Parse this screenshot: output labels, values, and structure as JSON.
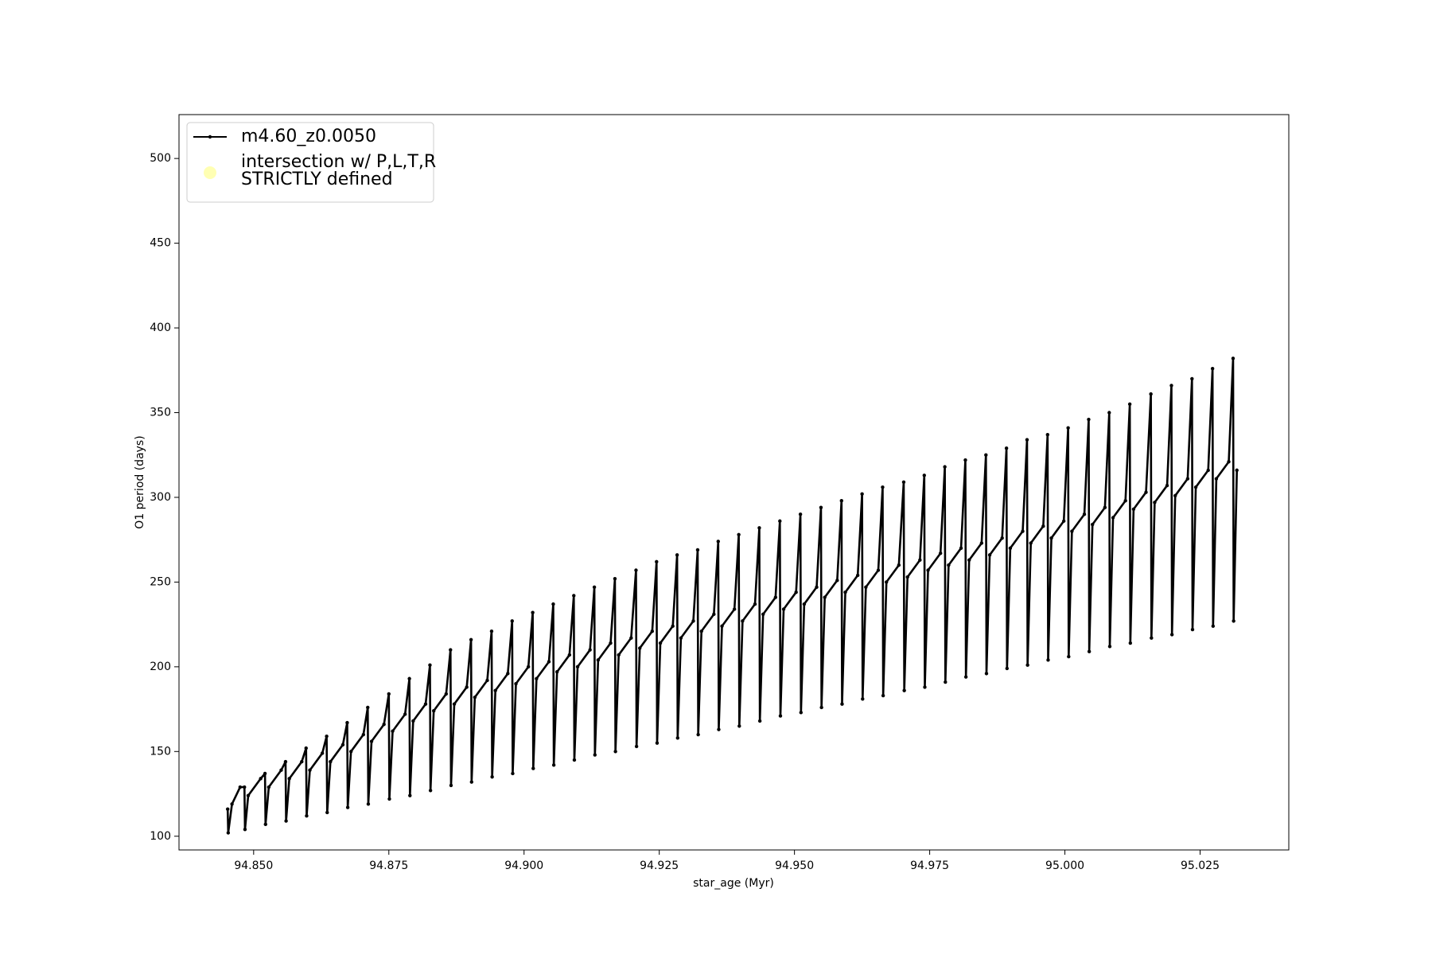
{
  "chart_data": {
    "type": "line",
    "xlabel": "star_age (Myr)",
    "ylabel": "O1 period (days)",
    "xlim": [
      94.8362,
      95.0414
    ],
    "ylim": [
      91.9,
      525.9
    ],
    "xticks": [
      {
        "value": 94.85,
        "label": "94.850"
      },
      {
        "value": 94.875,
        "label": "94.875"
      },
      {
        "value": 94.9,
        "label": "94.900"
      },
      {
        "value": 94.925,
        "label": "94.925"
      },
      {
        "value": 94.95,
        "label": "94.950"
      },
      {
        "value": 94.975,
        "label": "94.975"
      },
      {
        "value": 95.0,
        "label": "95.000"
      },
      {
        "value": 95.025,
        "label": "95.025"
      }
    ],
    "yticks": [
      100,
      150,
      200,
      250,
      300,
      350,
      400,
      450,
      500
    ],
    "grid": false,
    "legend": "upper left",
    "series": [
      {
        "name": "m4.60_z0.0050",
        "color": "#000000",
        "x": [
          94.8452,
          94.8453,
          94.846,
          94.8475,
          94.8483,
          94.8484,
          94.849,
          94.8513,
          94.8521,
          94.8522,
          94.8528,
          94.8551,
          94.8559,
          94.856,
          94.8566,
          94.8589,
          94.8597,
          94.8598,
          94.8604,
          94.8627,
          94.8635,
          94.8636,
          94.8642,
          94.8665,
          94.8673,
          94.8674,
          94.868,
          94.8703,
          94.8711,
          94.8712,
          94.8718,
          94.8741,
          94.875,
          94.8751,
          94.8757,
          94.878,
          94.8788,
          94.8789,
          94.8795,
          94.8818,
          94.8826,
          94.8827,
          94.8833,
          94.8856,
          94.8864,
          94.8865,
          94.8871,
          94.8894,
          94.8902,
          94.8903,
          94.8909,
          94.8932,
          94.894,
          94.8941,
          94.8947,
          94.897,
          94.8978,
          94.8979,
          94.8985,
          94.9008,
          94.9016,
          94.9017,
          94.9023,
          94.9046,
          94.9054,
          94.9055,
          94.9061,
          94.9084,
          94.9092,
          94.9093,
          94.9099,
          94.9122,
          94.913,
          94.9131,
          94.9137,
          94.916,
          94.9168,
          94.9169,
          94.9175,
          94.9198,
          94.9207,
          94.9208,
          94.9214,
          94.9237,
          94.9245,
          94.9246,
          94.9252,
          94.9275,
          94.9283,
          94.9284,
          94.929,
          94.9313,
          94.9321,
          94.9322,
          94.9328,
          94.9351,
          94.9359,
          94.936,
          94.9366,
          94.9389,
          94.9397,
          94.9398,
          94.9404,
          94.9427,
          94.9435,
          94.9436,
          94.9442,
          94.9465,
          94.9473,
          94.9474,
          94.948,
          94.9503,
          94.9511,
          94.9512,
          94.9518,
          94.9541,
          94.9549,
          94.955,
          94.9556,
          94.9579,
          94.9587,
          94.9588,
          94.9594,
          94.9617,
          94.9625,
          94.9626,
          94.9632,
          94.9655,
          94.9663,
          94.9664,
          94.967,
          94.9693,
          94.9702,
          94.9703,
          94.9709,
          94.9732,
          94.974,
          94.9741,
          94.9747,
          94.977,
          94.9778,
          94.9779,
          94.9785,
          94.9808,
          94.9816,
          94.9817,
          94.9823,
          94.9846,
          94.9854,
          94.9855,
          94.9861,
          94.9884,
          94.9892,
          94.9893,
          94.9899,
          94.9922,
          94.993,
          94.9931,
          94.9937,
          94.996,
          94.9968,
          94.9969,
          94.9975,
          94.9998,
          95.0006,
          95.0007,
          95.0013,
          95.0036,
          95.0044,
          95.0045,
          95.0051,
          95.0074,
          95.0082,
          95.0083,
          95.0089,
          95.0112,
          95.012,
          95.0121,
          95.0127,
          95.015,
          95.0159,
          95.016,
          95.0166,
          95.0189,
          95.0197,
          95.0198,
          95.0204,
          95.0227,
          95.0235,
          95.0236,
          95.0242,
          95.0265,
          95.0273,
          95.0274,
          95.028,
          95.0303,
          95.0311,
          95.0312,
          95.0318
        ],
        "values": [
          116,
          102,
          119,
          129,
          129,
          104,
          124,
          134,
          137,
          107,
          129,
          139,
          144,
          109,
          134,
          144,
          152,
          112,
          139,
          149,
          159,
          114,
          144,
          154,
          167,
          117,
          150,
          160,
          176,
          119,
          156,
          166,
          184,
          122,
          162,
          172,
          193,
          124,
          168,
          178,
          201,
          127,
          174,
          184,
          210,
          130,
          178,
          188,
          216,
          132,
          182,
          192,
          221,
          135,
          186,
          196,
          227,
          137,
          190,
          200,
          232,
          140,
          193,
          203,
          237,
          142,
          197,
          207,
          242,
          145,
          200,
          210,
          247,
          148,
          204,
          214,
          252,
          150,
          207,
          217,
          257,
          153,
          211,
          221,
          262,
          155,
          214,
          224,
          266,
          158,
          217,
          227,
          269,
          160,
          221,
          231,
          274,
          163,
          224,
          234,
          278,
          165,
          227,
          237,
          282,
          168,
          231,
          241,
          286,
          171,
          234,
          244,
          290,
          173,
          237,
          247,
          294,
          176,
          241,
          251,
          298,
          178,
          244,
          254,
          302,
          181,
          247,
          257,
          306,
          183,
          250,
          260,
          309,
          186,
          253,
          263,
          313,
          188,
          257,
          267,
          318,
          191,
          260,
          270,
          322,
          194,
          263,
          273,
          325,
          196,
          266,
          276,
          329,
          199,
          270,
          280,
          334,
          201,
          273,
          283,
          337,
          204,
          276,
          286,
          341,
          206,
          280,
          290,
          346,
          209,
          284,
          294,
          350,
          212,
          288,
          298,
          355,
          214,
          293,
          303,
          361,
          217,
          297,
          307,
          366,
          219,
          301,
          311,
          370,
          222,
          306,
          316,
          376,
          224,
          311,
          321,
          382,
          227,
          316
        ]
      },
      {
        "name": "intersection w/ P,L,T,R\nSTRICTLY defined",
        "color": "#ffffb3",
        "type": "scatter",
        "x": [],
        "values": []
      }
    ]
  }
}
